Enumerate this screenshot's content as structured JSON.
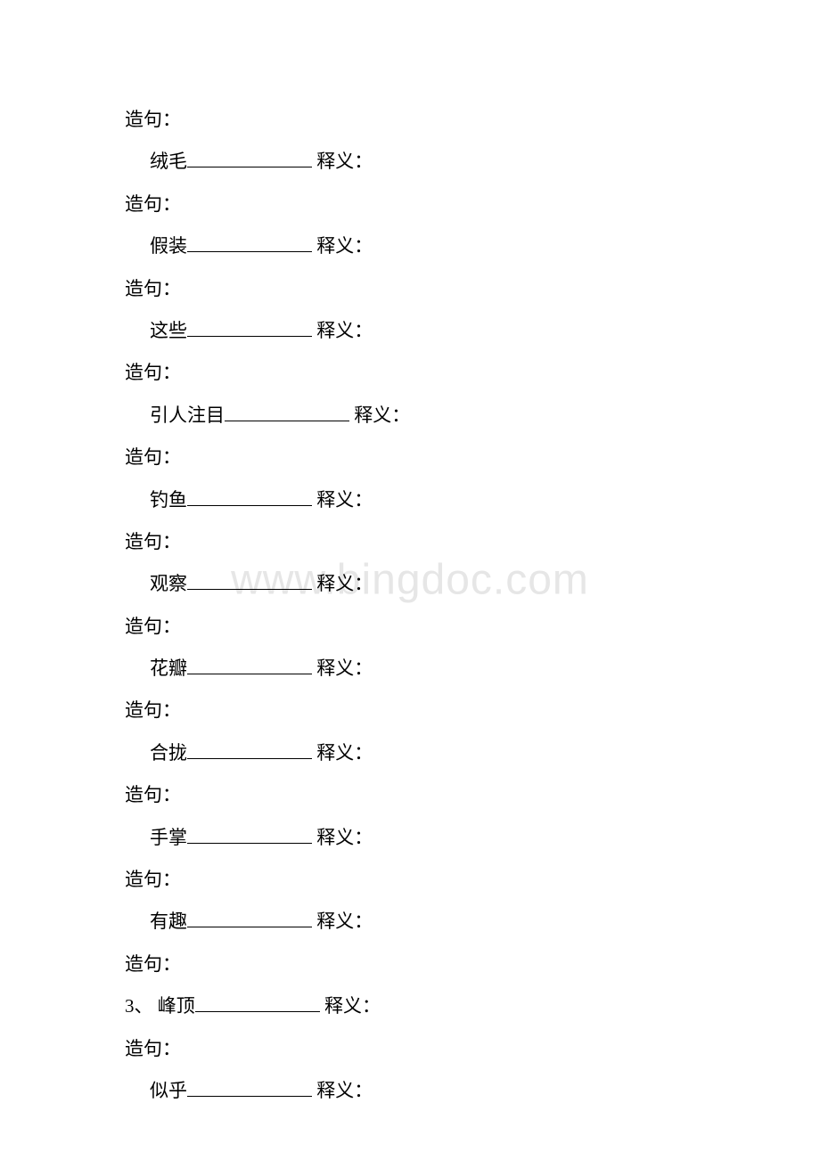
{
  "watermark": {
    "text": "www.bingdoc.com",
    "color": "#e6e6e6",
    "fontsize": 48
  },
  "text": {
    "sentence_label": "造句：",
    "meaning_label": "释义：",
    "blank_width_normal": 140,
    "blank_width_wide": 140,
    "font_size": 21,
    "text_color": "#000000",
    "background_color": "#ffffff"
  },
  "items": [
    {
      "word": "绒毛",
      "prefix": "",
      "indent": true
    },
    {
      "word": "假装",
      "prefix": "",
      "indent": true
    },
    {
      "word": "这些",
      "prefix": "",
      "indent": true
    },
    {
      "word": "引人注目",
      "prefix": "",
      "indent": true
    },
    {
      "word": "钓鱼",
      "prefix": "",
      "indent": true
    },
    {
      "word": "观察",
      "prefix": "",
      "indent": true
    },
    {
      "word": "花瓣",
      "prefix": "",
      "indent": true
    },
    {
      "word": "合拢",
      "prefix": "",
      "indent": true
    },
    {
      "word": "手掌",
      "prefix": "",
      "indent": true
    },
    {
      "word": "有趣",
      "prefix": "",
      "indent": true
    },
    {
      "word": "峰顶",
      "prefix": "3、",
      "indent": false
    },
    {
      "word": "似乎",
      "prefix": "",
      "indent": true
    }
  ],
  "initial_sentence": true
}
